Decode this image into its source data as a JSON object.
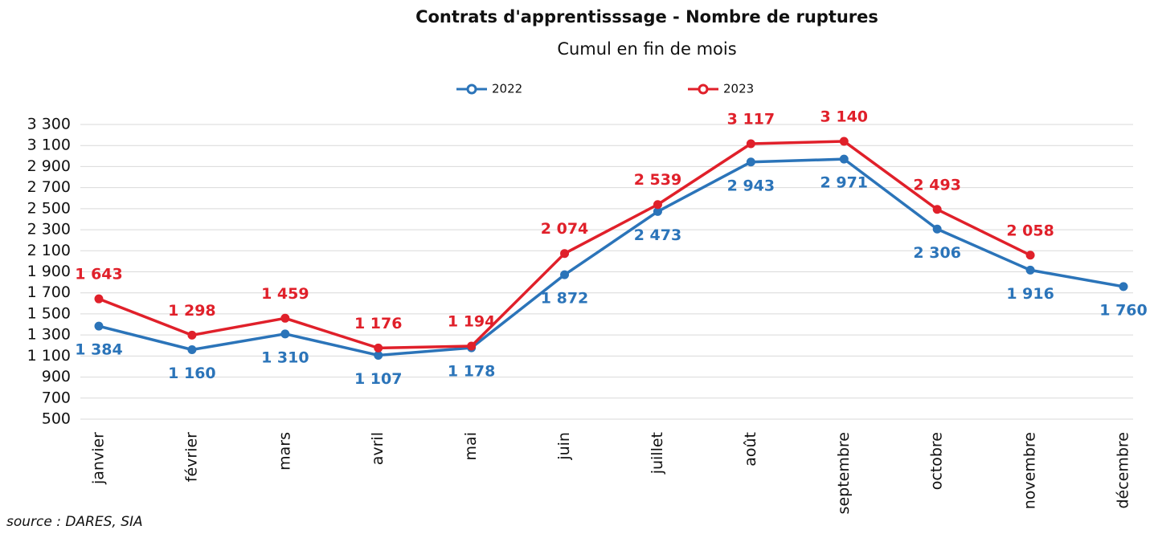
{
  "chart_data": {
    "type": "line",
    "title": "Contrats d'apprentisssage - Nombre de ruptures",
    "subtitle": "Cumul en fin de mois",
    "source": "source : DARES, SIA",
    "categories": [
      "janvier",
      "février",
      "mars",
      "avril",
      "mai",
      "juin",
      "juillet",
      "août",
      "septembre",
      "octobre",
      "novembre",
      "décembre"
    ],
    "series": [
      {
        "name": "2022",
        "color": "#2b74b9",
        "values": [
          1384,
          1160,
          1310,
          1107,
          1178,
          1872,
          2473,
          2943,
          2971,
          2306,
          1916,
          1760
        ],
        "value_labels": [
          "1 384",
          "1 160",
          "1 310",
          "1 107",
          "1 178",
          "1 872",
          "2 473",
          "2 943",
          "2 971",
          "2 306",
          "1 916",
          "1 760"
        ]
      },
      {
        "name": "2023",
        "color": "#e0202a",
        "values": [
          1643,
          1298,
          1459,
          1176,
          1194,
          2074,
          2539,
          3117,
          3140,
          2493,
          2058,
          null
        ],
        "value_labels": [
          "1 643",
          "1 298",
          "1 459",
          "1 176",
          "1 194",
          "2 074",
          "2 539",
          "3 117",
          "3 140",
          "2 493",
          "2 058",
          null
        ]
      }
    ],
    "ylim": [
      500,
      3300
    ],
    "yticks": [
      {
        "value": 500,
        "label": "500"
      },
      {
        "value": 700,
        "label": "700"
      },
      {
        "value": 900,
        "label": "900"
      },
      {
        "value": 1100,
        "label": "1 100"
      },
      {
        "value": 1300,
        "label": "1 300"
      },
      {
        "value": 1500,
        "label": "1 500"
      },
      {
        "value": 1700,
        "label": "1 700"
      },
      {
        "value": 1900,
        "label": "1 900"
      },
      {
        "value": 2100,
        "label": "2 100"
      },
      {
        "value": 2300,
        "label": "2 300"
      },
      {
        "value": 2500,
        "label": "2 500"
      },
      {
        "value": 2700,
        "label": "2 700"
      },
      {
        "value": 2900,
        "label": "2 900"
      },
      {
        "value": 3100,
        "label": "3 100"
      },
      {
        "value": 3300,
        "label": "3 300"
      }
    ],
    "grid": true,
    "legend": "top"
  }
}
